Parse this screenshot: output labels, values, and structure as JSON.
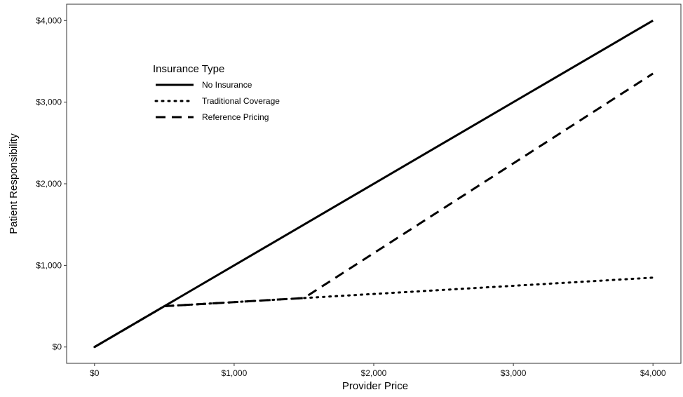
{
  "chart_data": {
    "type": "line",
    "title": "",
    "xlabel": "Provider Price",
    "ylabel": "Patient Responsibility",
    "xlim": [
      -200,
      4200
    ],
    "ylim": [
      -200,
      4200
    ],
    "x_ticks": [
      0,
      1000,
      2000,
      3000,
      4000
    ],
    "x_tick_labels": [
      "$0",
      "$1,000",
      "$2,000",
      "$3,000",
      "$4,000"
    ],
    "y_ticks": [
      0,
      1000,
      2000,
      3000,
      4000
    ],
    "y_tick_labels": [
      "$0",
      "$1,000",
      "$2,000",
      "$3,000",
      "$4,000"
    ],
    "grid": false,
    "legend": {
      "title": "Insurance Type",
      "placement": "top-left"
    },
    "series": [
      {
        "name": "No Insurance",
        "style": "solid",
        "x": [
          0,
          4000
        ],
        "y": [
          0,
          4000
        ]
      },
      {
        "name": "Traditional Coverage",
        "style": "dotted",
        "x": [
          0,
          500,
          4000
        ],
        "y": [
          0,
          500,
          850
        ]
      },
      {
        "name": "Reference Pricing",
        "style": "dashed",
        "x": [
          0,
          500,
          1500,
          4000
        ],
        "y": [
          0,
          500,
          600,
          3350
        ]
      }
    ],
    "line_color": "#000000"
  }
}
